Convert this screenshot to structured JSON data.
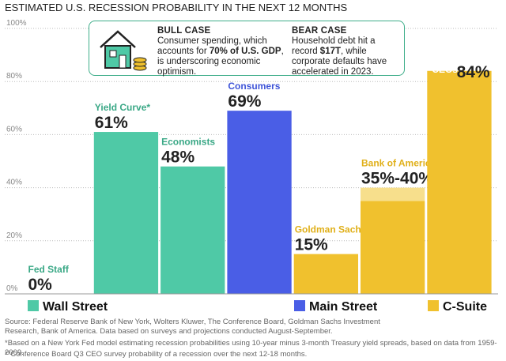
{
  "chart_data": {
    "type": "bar",
    "title": "ESTIMATED U.S. RECESSION PROBABILITY IN THE NEXT 12 MONTHS",
    "categories": [
      "Fed Staff",
      "Yield Curve*",
      "Economists",
      "Consumers",
      "Goldman Sachs",
      "Bank of America",
      "CEOs**"
    ],
    "values": [
      0,
      61,
      48,
      69,
      15,
      35,
      84
    ],
    "upper": [
      null,
      null,
      null,
      null,
      null,
      40,
      null
    ],
    "value_labels": [
      "0%",
      "61%",
      "48%",
      "69%",
      "15%",
      "35%-40%",
      "84%"
    ],
    "colors": [
      "#4fc9a6",
      "#4fc9a6",
      "#4fc9a6",
      "#4a5ee6",
      "#f0c12e",
      "#f0c12e",
      "#f0c12e"
    ],
    "range_color": "#f7df8c",
    "label_colors": [
      "#3aa886",
      "#3aa886",
      "#3aa886",
      "#3f55d8",
      "#e0b01a",
      "#e0b01a",
      "#e0b01a"
    ],
    "legend": [
      {
        "name": "Wall Street",
        "color": "#4fc9a6"
      },
      {
        "name": "Main Street",
        "color": "#4a5ee6"
      },
      {
        "name": "C-Suite",
        "color": "#f0c12e"
      }
    ],
    "ylim": [
      0,
      100
    ],
    "yticks": [
      {
        "value": 0,
        "label": "0%"
      },
      {
        "value": 20,
        "label": "20%"
      },
      {
        "value": 40,
        "label": "40%"
      },
      {
        "value": 60,
        "label": "60%"
      },
      {
        "value": 80,
        "label": "80%"
      },
      {
        "value": 100,
        "label": "100%"
      }
    ],
    "grid": true,
    "bull_case": {
      "title": "BULL CASE",
      "parts": [
        "Consumer spending, which accounts for ",
        "70% of U.S. GDP",
        ", is underscoring economic optimism."
      ]
    },
    "bear_case": {
      "title": "BEAR CASE",
      "parts": [
        "Household debt hit a record ",
        "$17T",
        ", while corporate defaults have accelerated in 2023."
      ]
    },
    "source": "Source: Federal Reserve Bank of New York, Wolters Kluwer, The Conference Board, Goldman Sachs Investment Research, Bank of America. Data based on surveys and projections conducted August-September.",
    "footnotes": [
      "*Based on a New York Fed model estimating recession probabilities using 10-year minus 3-month Treasury yield spreads, based on data from 1959-2009.",
      "**Conference Board Q3 CEO survey probability of a recession over the next 12-18 months."
    ]
  }
}
